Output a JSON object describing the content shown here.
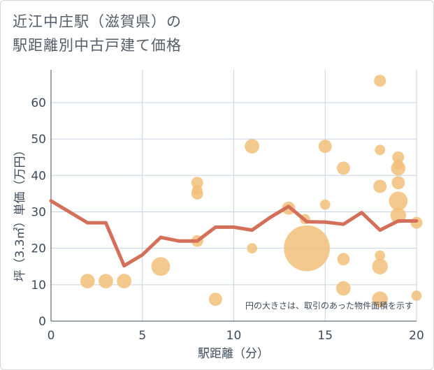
{
  "chart_data": {
    "type": "scatter",
    "title_line1": "近江中庄駅（滋賀県）の",
    "title_line2": "駅距離別中古戸建て価格",
    "xlabel": "駅距離（分）",
    "ylabel": "坪（3.3㎡）単価（万円）",
    "xlim": [
      0,
      20
    ],
    "ylim": [
      0,
      69
    ],
    "xticks": [
      0,
      5,
      10,
      15,
      20
    ],
    "yticks": [
      0,
      10,
      20,
      30,
      40,
      50,
      60
    ],
    "note": "円の大きさは、取引のあった物件面積を示す",
    "colors": {
      "bubble": "#f2c07a",
      "line": "#d4705a",
      "grid": "#c7d3e0",
      "text": "#3e4b5b"
    },
    "points": [
      {
        "x": 2,
        "y": 11,
        "s": 3
      },
      {
        "x": 3,
        "y": 11,
        "s": 3
      },
      {
        "x": 4,
        "y": 11,
        "s": 3
      },
      {
        "x": 6,
        "y": 15,
        "s": 5
      },
      {
        "x": 8,
        "y": 38,
        "s": 2
      },
      {
        "x": 8,
        "y": 36,
        "s": 1.5
      },
      {
        "x": 8,
        "y": 35,
        "s": 2
      },
      {
        "x": 8,
        "y": 22,
        "s": 2
      },
      {
        "x": 9,
        "y": 6,
        "s": 2.5
      },
      {
        "x": 11,
        "y": 48,
        "s": 3
      },
      {
        "x": 11,
        "y": 20,
        "s": 1.5
      },
      {
        "x": 13,
        "y": 31,
        "s": 2.5
      },
      {
        "x": 13.9,
        "y": 28,
        "s": 1.5
      },
      {
        "x": 14,
        "y": 20,
        "s": 30
      },
      {
        "x": 15,
        "y": 48,
        "s": 2.5
      },
      {
        "x": 15,
        "y": 32,
        "s": 1.5
      },
      {
        "x": 16,
        "y": 42,
        "s": 2.5
      },
      {
        "x": 16,
        "y": 17,
        "s": 2.2
      },
      {
        "x": 16,
        "y": 9,
        "s": 3
      },
      {
        "x": 18,
        "y": 66,
        "s": 2
      },
      {
        "x": 18,
        "y": 47,
        "s": 1.5
      },
      {
        "x": 18,
        "y": 37,
        "s": 2.5
      },
      {
        "x": 18,
        "y": 18,
        "s": 1.5
      },
      {
        "x": 18,
        "y": 15,
        "s": 3.5
      },
      {
        "x": 18,
        "y": 6,
        "s": 3.5
      },
      {
        "x": 19,
        "y": 45,
        "s": 2
      },
      {
        "x": 19,
        "y": 43,
        "s": 1.5
      },
      {
        "x": 19,
        "y": 42,
        "s": 3
      },
      {
        "x": 19,
        "y": 38,
        "s": 2.5
      },
      {
        "x": 19,
        "y": 33,
        "s": 5
      },
      {
        "x": 19,
        "y": 29,
        "s": 3.5
      },
      {
        "x": 20,
        "y": 27,
        "s": 2
      },
      {
        "x": 20,
        "y": 7,
        "s": 1.5
      }
    ],
    "trend": {
      "x": [
        0,
        1,
        2,
        3,
        4,
        5,
        6,
        7,
        8,
        9,
        10,
        11,
        12,
        13,
        14,
        15,
        16,
        17,
        18,
        19,
        20
      ],
      "y": [
        33,
        30,
        27,
        27,
        15.2,
        18.2,
        23,
        22,
        22,
        25.8,
        25.8,
        25,
        28.5,
        31.5,
        27.3,
        27.2,
        26.6,
        29.8,
        25,
        27.5,
        27.5
      ]
    }
  }
}
